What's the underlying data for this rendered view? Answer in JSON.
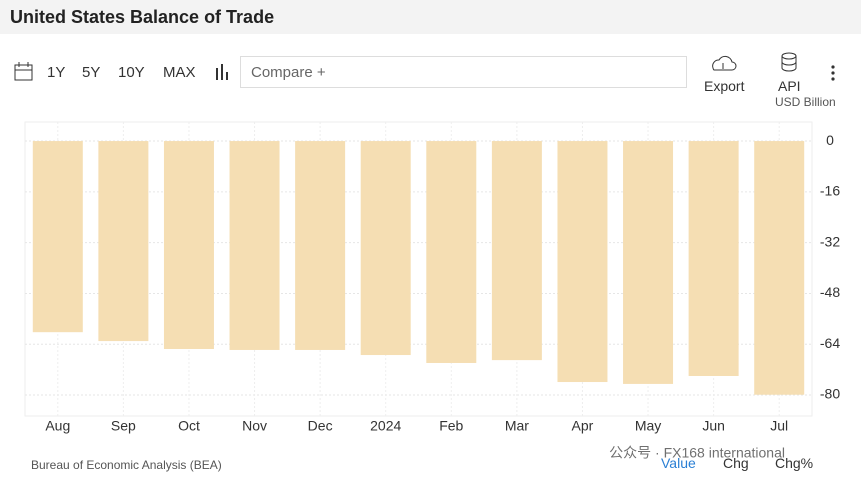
{
  "header": {
    "title": "United States Balance of Trade"
  },
  "toolbar": {
    "ranges": [
      "1Y",
      "5Y",
      "10Y",
      "MAX"
    ],
    "compare": "Compare +",
    "export": "Export",
    "api": "API"
  },
  "chart_data": {
    "type": "bar",
    "unit": "USD Billion",
    "categories": [
      "Aug",
      "Sep",
      "Oct",
      "Nov",
      "Dec",
      "2024",
      "Feb",
      "Mar",
      "Apr",
      "May",
      "Jun",
      "Jul"
    ],
    "values": [
      -60.2,
      -63.0,
      -65.5,
      -65.8,
      -65.8,
      -67.4,
      -69.9,
      -69.0,
      -75.9,
      -76.5,
      -74.0,
      -79.9
    ],
    "color": "#f5deb3",
    "ylim": [
      -86.6,
      6
    ],
    "yticks": [
      0,
      -16,
      -32,
      -48,
      -64,
      -80
    ],
    "grid": true
  },
  "footer": {
    "source": "Bureau of Economic Analysis (BEA)",
    "tabs": [
      "Value",
      "Chg",
      "Chg%"
    ],
    "watermark": "公众号 · FX168 international"
  }
}
